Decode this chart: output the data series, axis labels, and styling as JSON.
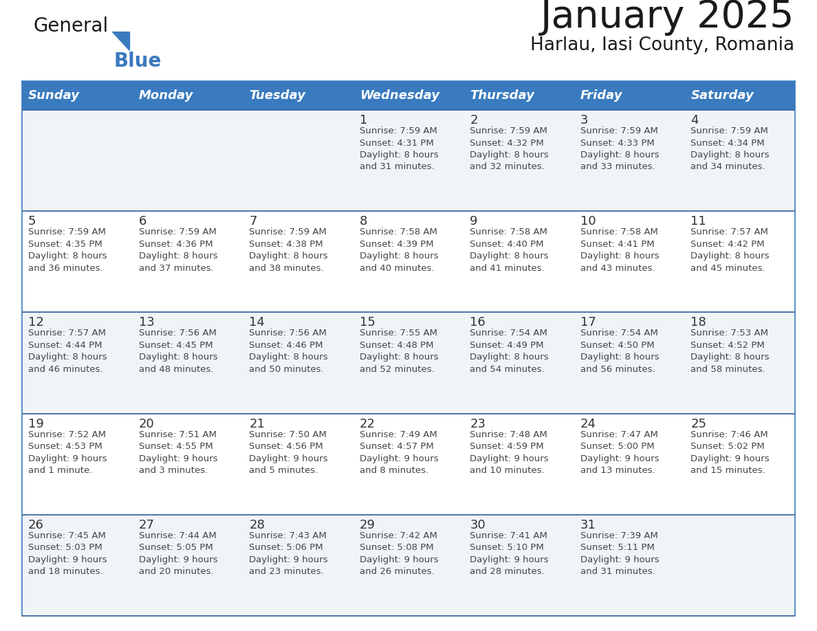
{
  "title": "January 2025",
  "subtitle": "Harlau, Iasi County, Romania",
  "header_color": "#3a7abf",
  "header_text_color": "#ffffff",
  "cell_bg_even": "#f0f4f8",
  "cell_bg_odd": "#ffffff",
  "row_border_color": "#2d5f9e",
  "outer_border_color": "#3a7abf",
  "day_headers": [
    "Sunday",
    "Monday",
    "Tuesday",
    "Wednesday",
    "Thursday",
    "Friday",
    "Saturday"
  ],
  "title_color": "#1a1a1a",
  "subtitle_color": "#1a1a1a",
  "day_number_color": "#333333",
  "text_color": "#444444",
  "logo_general_color": "#1a1a1a",
  "logo_blue_color": "#3a7abf",
  "weeks": [
    [
      {
        "day": "",
        "info": ""
      },
      {
        "day": "",
        "info": ""
      },
      {
        "day": "",
        "info": ""
      },
      {
        "day": "1",
        "info": "Sunrise: 7:59 AM\nSunset: 4:31 PM\nDaylight: 8 hours\nand 31 minutes."
      },
      {
        "day": "2",
        "info": "Sunrise: 7:59 AM\nSunset: 4:32 PM\nDaylight: 8 hours\nand 32 minutes."
      },
      {
        "day": "3",
        "info": "Sunrise: 7:59 AM\nSunset: 4:33 PM\nDaylight: 8 hours\nand 33 minutes."
      },
      {
        "day": "4",
        "info": "Sunrise: 7:59 AM\nSunset: 4:34 PM\nDaylight: 8 hours\nand 34 minutes."
      }
    ],
    [
      {
        "day": "5",
        "info": "Sunrise: 7:59 AM\nSunset: 4:35 PM\nDaylight: 8 hours\nand 36 minutes."
      },
      {
        "day": "6",
        "info": "Sunrise: 7:59 AM\nSunset: 4:36 PM\nDaylight: 8 hours\nand 37 minutes."
      },
      {
        "day": "7",
        "info": "Sunrise: 7:59 AM\nSunset: 4:38 PM\nDaylight: 8 hours\nand 38 minutes."
      },
      {
        "day": "8",
        "info": "Sunrise: 7:58 AM\nSunset: 4:39 PM\nDaylight: 8 hours\nand 40 minutes."
      },
      {
        "day": "9",
        "info": "Sunrise: 7:58 AM\nSunset: 4:40 PM\nDaylight: 8 hours\nand 41 minutes."
      },
      {
        "day": "10",
        "info": "Sunrise: 7:58 AM\nSunset: 4:41 PM\nDaylight: 8 hours\nand 43 minutes."
      },
      {
        "day": "11",
        "info": "Sunrise: 7:57 AM\nSunset: 4:42 PM\nDaylight: 8 hours\nand 45 minutes."
      }
    ],
    [
      {
        "day": "12",
        "info": "Sunrise: 7:57 AM\nSunset: 4:44 PM\nDaylight: 8 hours\nand 46 minutes."
      },
      {
        "day": "13",
        "info": "Sunrise: 7:56 AM\nSunset: 4:45 PM\nDaylight: 8 hours\nand 48 minutes."
      },
      {
        "day": "14",
        "info": "Sunrise: 7:56 AM\nSunset: 4:46 PM\nDaylight: 8 hours\nand 50 minutes."
      },
      {
        "day": "15",
        "info": "Sunrise: 7:55 AM\nSunset: 4:48 PM\nDaylight: 8 hours\nand 52 minutes."
      },
      {
        "day": "16",
        "info": "Sunrise: 7:54 AM\nSunset: 4:49 PM\nDaylight: 8 hours\nand 54 minutes."
      },
      {
        "day": "17",
        "info": "Sunrise: 7:54 AM\nSunset: 4:50 PM\nDaylight: 8 hours\nand 56 minutes."
      },
      {
        "day": "18",
        "info": "Sunrise: 7:53 AM\nSunset: 4:52 PM\nDaylight: 8 hours\nand 58 minutes."
      }
    ],
    [
      {
        "day": "19",
        "info": "Sunrise: 7:52 AM\nSunset: 4:53 PM\nDaylight: 9 hours\nand 1 minute."
      },
      {
        "day": "20",
        "info": "Sunrise: 7:51 AM\nSunset: 4:55 PM\nDaylight: 9 hours\nand 3 minutes."
      },
      {
        "day": "21",
        "info": "Sunrise: 7:50 AM\nSunset: 4:56 PM\nDaylight: 9 hours\nand 5 minutes."
      },
      {
        "day": "22",
        "info": "Sunrise: 7:49 AM\nSunset: 4:57 PM\nDaylight: 9 hours\nand 8 minutes."
      },
      {
        "day": "23",
        "info": "Sunrise: 7:48 AM\nSunset: 4:59 PM\nDaylight: 9 hours\nand 10 minutes."
      },
      {
        "day": "24",
        "info": "Sunrise: 7:47 AM\nSunset: 5:00 PM\nDaylight: 9 hours\nand 13 minutes."
      },
      {
        "day": "25",
        "info": "Sunrise: 7:46 AM\nSunset: 5:02 PM\nDaylight: 9 hours\nand 15 minutes."
      }
    ],
    [
      {
        "day": "26",
        "info": "Sunrise: 7:45 AM\nSunset: 5:03 PM\nDaylight: 9 hours\nand 18 minutes."
      },
      {
        "day": "27",
        "info": "Sunrise: 7:44 AM\nSunset: 5:05 PM\nDaylight: 9 hours\nand 20 minutes."
      },
      {
        "day": "28",
        "info": "Sunrise: 7:43 AM\nSunset: 5:06 PM\nDaylight: 9 hours\nand 23 minutes."
      },
      {
        "day": "29",
        "info": "Sunrise: 7:42 AM\nSunset: 5:08 PM\nDaylight: 9 hours\nand 26 minutes."
      },
      {
        "day": "30",
        "info": "Sunrise: 7:41 AM\nSunset: 5:10 PM\nDaylight: 9 hours\nand 28 minutes."
      },
      {
        "day": "31",
        "info": "Sunrise: 7:39 AM\nSunset: 5:11 PM\nDaylight: 9 hours\nand 31 minutes."
      },
      {
        "day": "",
        "info": ""
      }
    ]
  ]
}
